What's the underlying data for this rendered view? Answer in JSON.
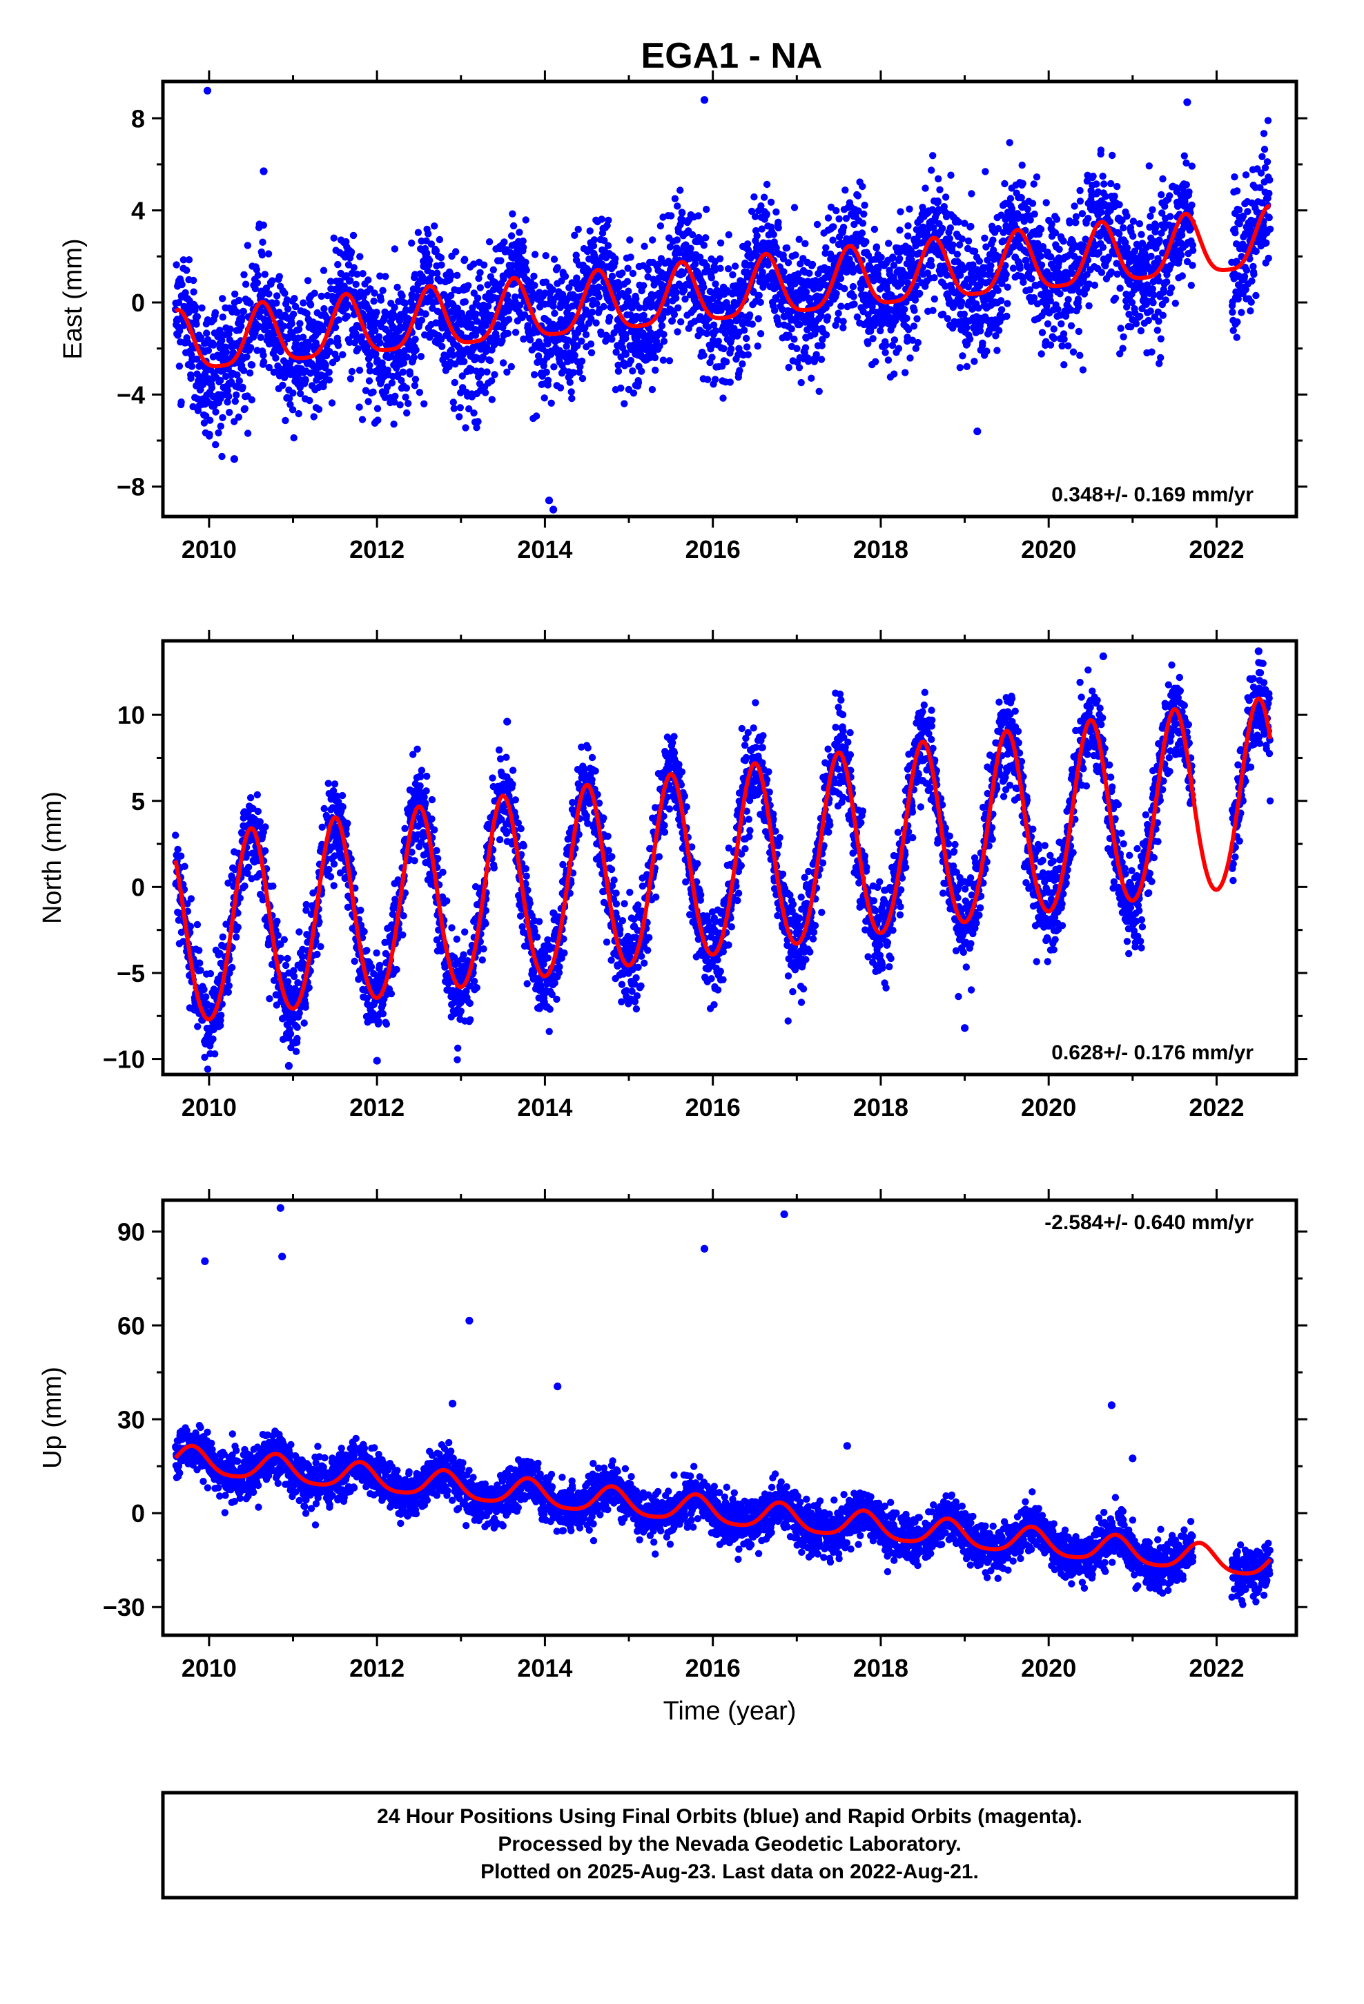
{
  "title": "EGA1 - NA",
  "footer": {
    "lines": [
      "24 Hour Positions Using Final Orbits (blue) and Rapid Orbits (magenta).",
      "Processed by the Nevada Geodetic Laboratory.",
      "Plotted on 2025-Aug-23. Last data on 2022-Aug-21."
    ]
  },
  "colors": {
    "points": "#0000ff",
    "model": "#ff0000",
    "frame": "#000000"
  },
  "chart_data": [
    {
      "type": "scatter",
      "ylabel": "East (mm)",
      "xlabel": "",
      "rate_label": "0.348+/- 0.169 mm/yr",
      "rate_position": "bottom-right",
      "xlim": [
        2009.45,
        2022.95
      ],
      "ylim": [
        -9.3,
        9.6
      ],
      "xticks": [
        2010,
        2012,
        2014,
        2016,
        2018,
        2020,
        2022
      ],
      "xtick_labels": [
        "2010",
        "2012",
        "2014",
        "2016",
        "2018",
        "2020",
        "2022"
      ],
      "yticks": [
        -8,
        -4,
        0,
        4,
        8
      ],
      "ytick_labels": [
        "−8",
        "−4",
        "0",
        "4",
        "8"
      ],
      "grid": false,
      "data_range": [
        2009.6,
        2022.64
      ],
      "trend": {
        "value_at_2010": -1.8,
        "rate": 0.348
      },
      "seasonal": {
        "annual_amplitude": 1.3,
        "semiannual_amplitude": 0.3,
        "peak_fraction_of_year": 0.63
      },
      "scatter_sigma": 1.4,
      "outliers": [
        [
          2009.98,
          9.2
        ],
        [
          2015.9,
          8.8
        ],
        [
          2010.65,
          5.7
        ],
        [
          2014.1,
          -9.0
        ],
        [
          2014.05,
          -8.6
        ],
        [
          2019.15,
          -5.6
        ],
        [
          2010.3,
          -6.8
        ],
        [
          2021.65,
          8.7
        ]
      ],
      "series": [
        {
          "name": "",
          "kind": "points",
          "color": "#0000ff"
        },
        {
          "name": "",
          "kind": "model",
          "color": "#ff0000"
        }
      ]
    },
    {
      "type": "scatter",
      "ylabel": "North (mm)",
      "xlabel": "",
      "rate_label": "0.628+/- 0.176 mm/yr",
      "rate_position": "bottom-right",
      "xlim": [
        2009.45,
        2022.95
      ],
      "ylim": [
        -10.9,
        14.3
      ],
      "xticks": [
        2010,
        2012,
        2014,
        2016,
        2018,
        2020,
        2022
      ],
      "xtick_labels": [
        "2010",
        "2012",
        "2014",
        "2016",
        "2018",
        "2020",
        "2022"
      ],
      "yticks": [
        -10,
        -5,
        0,
        5,
        10
      ],
      "ytick_labels": [
        "−10",
        "−5",
        "0",
        "5",
        "10"
      ],
      "grid": false,
      "data_range": [
        2009.6,
        2022.64
      ],
      "trend": {
        "value_at_2010": -2.7,
        "rate": 0.628
      },
      "seasonal": {
        "annual_amplitude": 5.4,
        "semiannual_amplitude": 0.4,
        "peak_fraction_of_year": 0.5
      },
      "scatter_sigma": 1.3,
      "outliers": [
        [
          2010.95,
          -10.4
        ],
        [
          2012.0,
          -10.1
        ],
        [
          2013.55,
          9.6
        ],
        [
          2019.0,
          -8.2
        ],
        [
          2020.65,
          13.4
        ],
        [
          2022.5,
          13.7
        ]
      ],
      "series": [
        {
          "name": "",
          "kind": "points",
          "color": "#0000ff"
        },
        {
          "name": "",
          "kind": "model",
          "color": "#ff0000"
        }
      ]
    },
    {
      "type": "scatter",
      "ylabel": "Up (mm)",
      "xlabel": "Time (year)",
      "rate_label": "-2.584+/- 0.640 mm/yr",
      "rate_position": "top-right",
      "xlim": [
        2009.45,
        2022.95
      ],
      "ylim": [
        -39,
        100
      ],
      "xticks": [
        2010,
        2012,
        2014,
        2016,
        2018,
        2020,
        2022
      ],
      "xtick_labels": [
        "2010",
        "2012",
        "2014",
        "2016",
        "2018",
        "2020",
        "2022"
      ],
      "yticks": [
        -30,
        0,
        30,
        60,
        90
      ],
      "ytick_labels": [
        "−30",
        "0",
        "30",
        "60",
        "90"
      ],
      "grid": false,
      "data_range": [
        2009.6,
        2022.64
      ],
      "trend": {
        "value_at_2010": 16.0,
        "rate": -2.584
      },
      "seasonal": {
        "annual_amplitude": 4.2,
        "semiannual_amplitude": 0.8,
        "peak_fraction_of_year": 0.8
      },
      "scatter_sigma": 3.8,
      "outliers": [
        [
          2009.95,
          80.5
        ],
        [
          2010.85,
          97.5
        ],
        [
          2010.87,
          82.0
        ],
        [
          2013.1,
          61.5
        ],
        [
          2014.15,
          40.5
        ],
        [
          2015.9,
          84.5
        ],
        [
          2016.85,
          95.5
        ],
        [
          2020.75,
          34.5
        ],
        [
          2021.0,
          17.5
        ],
        [
          2017.6,
          21.5
        ],
        [
          2012.9,
          35.0
        ]
      ],
      "series": [
        {
          "name": "",
          "kind": "points",
          "color": "#0000ff"
        },
        {
          "name": "",
          "kind": "model",
          "color": "#ff0000"
        }
      ]
    }
  ]
}
